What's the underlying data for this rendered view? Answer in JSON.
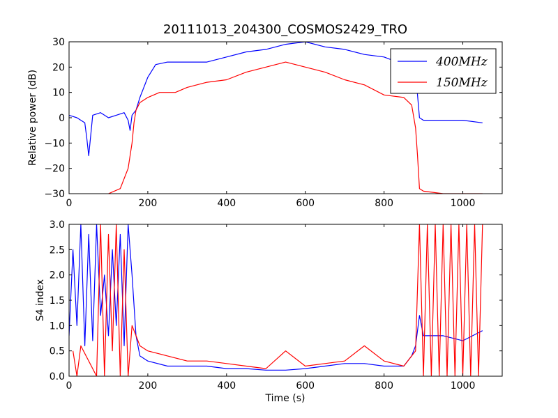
{
  "colors": {
    "series_400": "#0000ff",
    "series_150": "#ff0000",
    "axes": "#000000",
    "background": "#ffffff"
  },
  "chart_data": [
    {
      "type": "line",
      "title": "20111013_204300_COSMOS2429_TRO",
      "xlabel": "",
      "ylabel": "Relative power (dB)",
      "xlim": [
        0,
        1100
      ],
      "ylim": [
        -30,
        30
      ],
      "xticks": [
        "0",
        "200",
        "400",
        "600",
        "800",
        "1000"
      ],
      "yticks": [
        "30",
        "20",
        "10",
        "0",
        "−10",
        "−20",
        "−30"
      ],
      "legend_position": "top-right",
      "series": [
        {
          "name": "400MHz",
          "color": "#0000ff",
          "x": [
            0,
            20,
            40,
            45,
            50,
            60,
            80,
            100,
            120,
            140,
            150,
            155,
            160,
            165,
            170,
            180,
            200,
            220,
            250,
            300,
            350,
            400,
            450,
            500,
            550,
            600,
            650,
            700,
            750,
            800,
            850,
            870,
            880,
            890,
            900,
            950,
            1000,
            1050
          ],
          "y": [
            1,
            0,
            -2,
            -8,
            -15,
            1,
            2,
            0,
            1,
            2,
            -1,
            -5,
            1,
            2,
            3,
            8,
            16,
            21,
            22,
            22,
            22,
            24,
            26,
            27,
            29,
            30,
            28,
            27,
            25,
            24,
            21,
            20,
            18,
            0,
            -1,
            -1,
            -1,
            -2
          ]
        },
        {
          "name": "150MHz",
          "color": "#ff0000",
          "x": [
            100,
            130,
            150,
            160,
            165,
            170,
            180,
            200,
            230,
            270,
            300,
            350,
            400,
            450,
            500,
            550,
            600,
            650,
            700,
            750,
            800,
            850,
            870,
            880,
            885,
            890,
            900,
            950,
            1000,
            1050
          ],
          "y": [
            -30,
            -28,
            -20,
            -10,
            -2,
            3,
            6,
            8,
            10,
            10,
            12,
            14,
            15,
            18,
            20,
            22,
            20,
            18,
            15,
            13,
            9,
            8,
            5,
            -4,
            -15,
            -28,
            -29,
            -30,
            -30,
            -30
          ]
        }
      ]
    },
    {
      "type": "line",
      "title": "",
      "xlabel": "Time (s)",
      "ylabel": "S4 index",
      "xlim": [
        0,
        1100
      ],
      "ylim": [
        0,
        3
      ],
      "xticks": [
        "0",
        "200",
        "400",
        "600",
        "800",
        "1000"
      ],
      "yticks": [
        "3.0",
        "2.5",
        "2.0",
        "1.5",
        "1.0",
        "0.5",
        "0.0"
      ],
      "series": [
        {
          "name": "400MHz",
          "color": "#0000ff",
          "x": [
            0,
            10,
            20,
            30,
            40,
            50,
            60,
            70,
            80,
            90,
            100,
            110,
            120,
            130,
            140,
            150,
            160,
            170,
            180,
            200,
            250,
            300,
            350,
            400,
            450,
            500,
            550,
            600,
            650,
            700,
            750,
            800,
            850,
            870,
            880,
            890,
            900,
            950,
            1000,
            1050
          ],
          "y": [
            0.8,
            2.5,
            1.0,
            3.0,
            0.6,
            2.8,
            0.7,
            3.0,
            1.2,
            2.0,
            0.8,
            2.5,
            1.0,
            2.8,
            0.6,
            3.0,
            2.0,
            0.8,
            0.4,
            0.3,
            0.2,
            0.2,
            0.2,
            0.15,
            0.15,
            0.12,
            0.12,
            0.15,
            0.2,
            0.25,
            0.25,
            0.2,
            0.2,
            0.4,
            0.6,
            1.2,
            0.8,
            0.8,
            0.7,
            0.9
          ]
        },
        {
          "name": "150MHz",
          "color": "#ff0000",
          "x": [
            10,
            20,
            30,
            70,
            80,
            90,
            100,
            110,
            120,
            130,
            140,
            150,
            160,
            170,
            180,
            200,
            250,
            300,
            350,
            400,
            450,
            500,
            550,
            600,
            650,
            700,
            750,
            800,
            850,
            880,
            890,
            900,
            910,
            920,
            930,
            940,
            950,
            960,
            970,
            980,
            990,
            1000,
            1010,
            1020,
            1030,
            1040,
            1050
          ],
          "y": [
            0.5,
            0.0,
            0.6,
            0.0,
            3.0,
            0.0,
            2.8,
            0.5,
            3.0,
            0.0,
            2.5,
            0.0,
            1.0,
            0.8,
            0.6,
            0.5,
            0.4,
            0.3,
            0.3,
            0.25,
            0.2,
            0.15,
            0.5,
            0.2,
            0.25,
            0.3,
            0.6,
            0.3,
            0.2,
            0.5,
            3.0,
            0.0,
            3.0,
            0.0,
            3.0,
            0.0,
            3.0,
            0.0,
            3.0,
            0.0,
            3.0,
            0.0,
            3.0,
            0.0,
            3.0,
            0.0,
            3.0
          ]
        }
      ]
    }
  ]
}
